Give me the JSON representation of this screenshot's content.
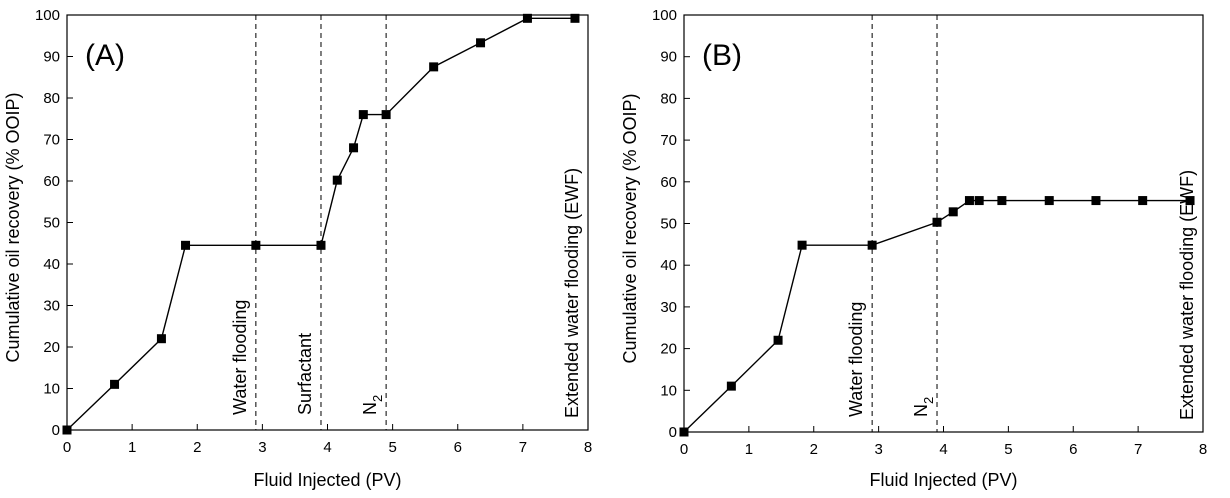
{
  "chart_data": [
    {
      "type": "line",
      "panel_label": "(A)",
      "xlabel": "Fluid Injected (PV)",
      "ylabel": "Cumulative oil recovery (% OOIP)",
      "xlim": [
        0,
        8
      ],
      "ylim": [
        0,
        100
      ],
      "xticks": [
        "0",
        "1",
        "2",
        "3",
        "4",
        "5",
        "6",
        "7",
        "8"
      ],
      "yticks": [
        "0",
        "10",
        "20",
        "30",
        "40",
        "50",
        "60",
        "70",
        "80",
        "90",
        "100"
      ],
      "grid": false,
      "series": [
        {
          "marker": "square",
          "color": "#000000",
          "x": [
            0,
            0.73,
            1.45,
            1.82,
            2.9,
            3.9,
            4.15,
            4.4,
            4.55,
            4.9,
            5.63,
            6.35,
            7.07,
            7.8
          ],
          "y": [
            0,
            11,
            22,
            44.5,
            44.5,
            44.5,
            60.2,
            68,
            76,
            76,
            87.5,
            93.3,
            99.2,
            99.2
          ]
        }
      ],
      "phase_boundaries": [
        {
          "x": 2.9,
          "label": "Water flooding"
        },
        {
          "x": 3.9,
          "label": "Surfactant"
        },
        {
          "x": 4.9,
          "label": "N",
          "subscript": "2"
        }
      ],
      "end_label": "Extended water flooding (EWF)"
    },
    {
      "type": "line",
      "panel_label": "(B)",
      "xlabel": "Fluid Injected (PV)",
      "ylabel": "Cumulative oil recovery (% OOIP)",
      "xlim": [
        0,
        8
      ],
      "ylim": [
        0,
        100
      ],
      "xticks": [
        "0",
        "1",
        "2",
        "3",
        "4",
        "5",
        "6",
        "7",
        "8"
      ],
      "yticks": [
        "0",
        "10",
        "20",
        "30",
        "40",
        "50",
        "60",
        "70",
        "80",
        "90",
        "100"
      ],
      "grid": false,
      "series": [
        {
          "marker": "square",
          "color": "#000000",
          "x": [
            0,
            0.73,
            1.45,
            1.82,
            2.9,
            3.9,
            4.15,
            4.4,
            4.55,
            4.9,
            5.63,
            6.35,
            7.07,
            7.8
          ],
          "y": [
            0,
            11,
            22,
            44.8,
            44.8,
            50.3,
            52.8,
            55.5,
            55.5,
            55.5,
            55.5,
            55.5,
            55.5,
            55.5
          ]
        }
      ],
      "phase_boundaries": [
        {
          "x": 2.9,
          "label": "Water flooding"
        },
        {
          "x": 3.9,
          "label": "N",
          "subscript": "2"
        }
      ],
      "end_label": "Extended water flooding (EWF)"
    }
  ]
}
